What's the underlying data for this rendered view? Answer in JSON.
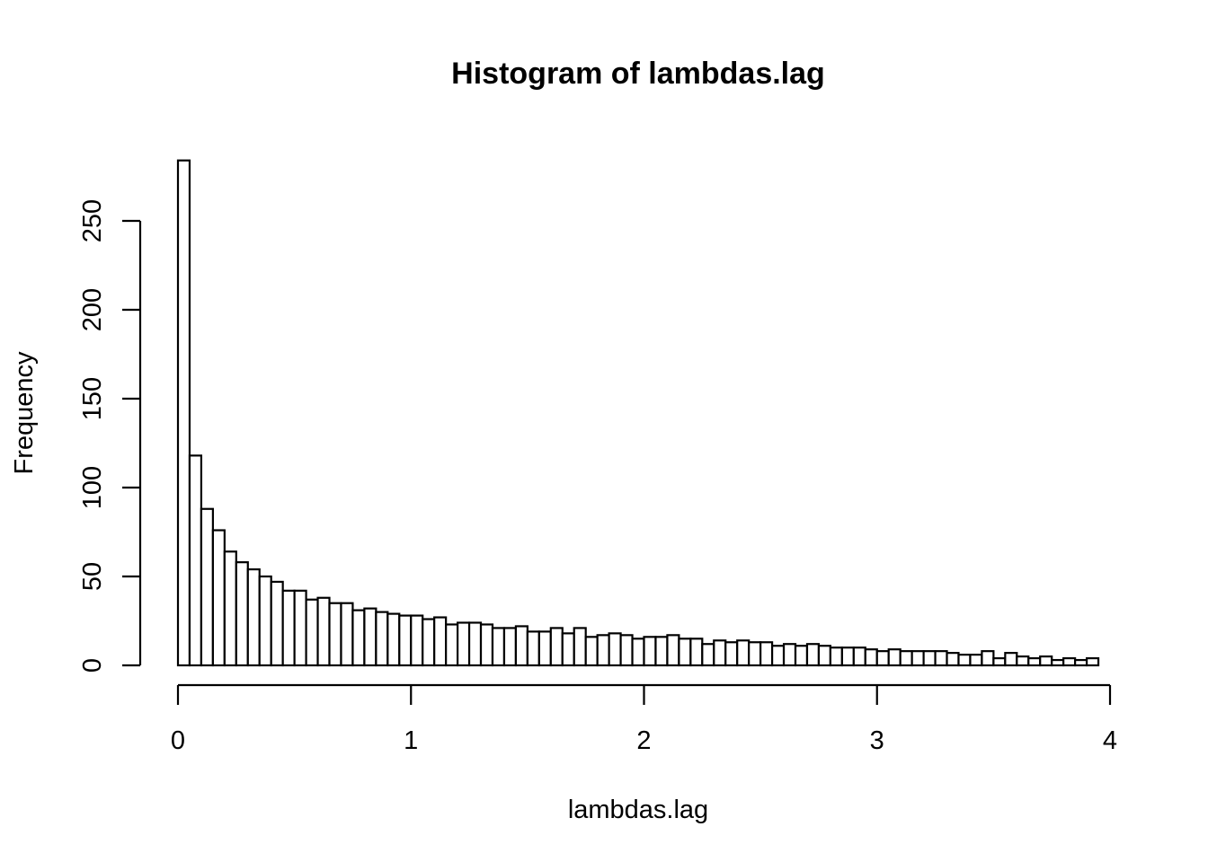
{
  "chart_data": {
    "type": "bar",
    "subtype": "histogram",
    "title": "Histogram of lambdas.lag",
    "xlabel": "lambdas.lag",
    "ylabel": "Frequency",
    "bin_width": 0.05,
    "bin_start": 0,
    "xlim": [
      0,
      4
    ],
    "ylim": [
      0,
      285
    ],
    "x_ticks": [
      0,
      1,
      2,
      3,
      4
    ],
    "x_tick_labels": [
      "0",
      "1",
      "2",
      "3",
      "4"
    ],
    "y_ticks": [
      0,
      50,
      100,
      150,
      200,
      250
    ],
    "y_tick_labels": [
      "0",
      "50",
      "100",
      "150",
      "200",
      "250"
    ],
    "values": [
      284,
      118,
      88,
      76,
      64,
      58,
      54,
      50,
      47,
      42,
      42,
      37,
      38,
      35,
      35,
      31,
      32,
      30,
      29,
      28,
      28,
      26,
      27,
      23,
      24,
      24,
      23,
      21,
      21,
      22,
      19,
      19,
      21,
      18,
      21,
      16,
      17,
      18,
      17,
      15,
      16,
      16,
      17,
      15,
      15,
      12,
      14,
      13,
      14,
      13,
      13,
      11,
      12,
      11,
      12,
      11,
      10,
      10,
      10,
      9,
      8,
      9,
      8,
      8,
      8,
      8,
      7,
      6,
      6,
      8,
      4,
      7,
      5,
      4,
      5,
      3,
      4,
      3,
      4
    ]
  }
}
